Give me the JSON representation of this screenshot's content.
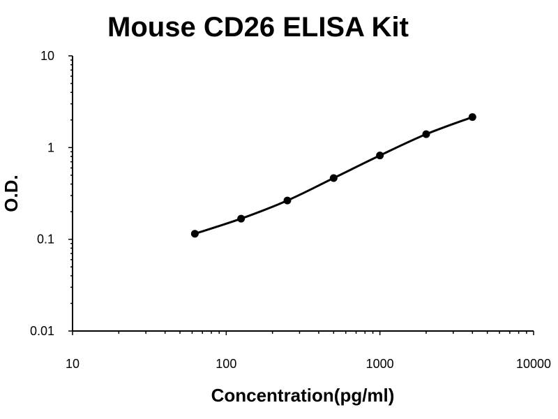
{
  "chart_data": {
    "type": "scatter",
    "title": "Mouse CD26 ELISA Kit",
    "xlabel": "Concentration(pg/ml)",
    "ylabel": "O.D.",
    "xscale": "log",
    "yscale": "log",
    "xlim": [
      10,
      10000
    ],
    "ylim": [
      0.01,
      10
    ],
    "x_ticks": [
      "10",
      "100",
      "1000",
      "10000"
    ],
    "y_ticks": [
      "0.01",
      "0.1",
      "1",
      "10"
    ],
    "grid": false,
    "series": [
      {
        "x": [
          62.5,
          125,
          250,
          500,
          1000,
          2000,
          4000
        ],
        "y": [
          0.115,
          0.168,
          0.265,
          0.465,
          0.82,
          1.4,
          2.15
        ],
        "fit_line": true
      }
    ]
  }
}
